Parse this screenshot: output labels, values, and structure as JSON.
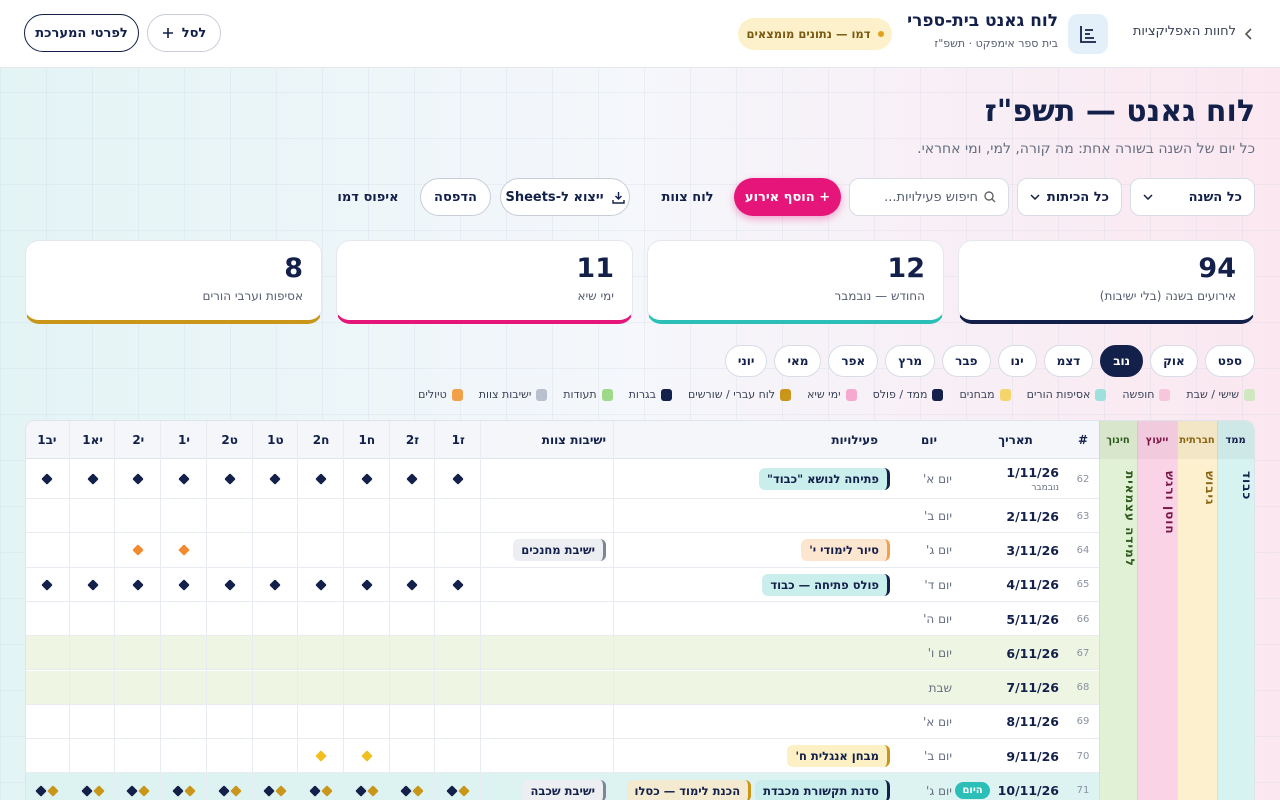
{
  "header": {
    "back": "לחוות האפליקציות",
    "title": "לוח גאנט בית-ספרי",
    "subtitle": "בית ספר אימפקט · תשפ\"ז",
    "badge": "דמו — נתונים מומצאים",
    "details": "לפרטי המערכת",
    "cart": "לסל"
  },
  "page": {
    "title": "לוח גאנט — תשפ\"ז",
    "subtitle": "כל יום של השנה בשורה אחת: מה קורה, למי, ומי אחראי."
  },
  "toolbar": {
    "range": "כל השנה",
    "classes": "כל הכיתות",
    "search": "חיפוש פעילויות...",
    "add": "+ הוסף אירוע",
    "staff": "לוח צוות",
    "export": "ייצוא ל-Sheets",
    "print": "הדפסה",
    "reset": "איפוס דמו"
  },
  "stats": [
    {
      "value": "94",
      "label": "אירועים בשנה (בלי ישיבות)",
      "color": "#13204a"
    },
    {
      "value": "12",
      "label": "החודש — נובמבר",
      "color": "#2bbfb8"
    },
    {
      "value": "11",
      "label": "ימי שיא",
      "color": "#e5157a"
    },
    {
      "value": "8",
      "label": "אסיפות וערבי הורים",
      "color": "#c9961a"
    }
  ],
  "months": {
    "items": [
      "ספט",
      "אוק",
      "נוב",
      "דצמ",
      "ינו",
      "פבר",
      "מרץ",
      "אפר",
      "מאי",
      "יוני"
    ],
    "active": "נוב"
  },
  "legend": [
    {
      "label": "שישי / שבת",
      "color": "#cfe8bf"
    },
    {
      "label": "חופשה",
      "color": "#f7c6dc"
    },
    {
      "label": "אסיפות הורים",
      "color": "#9fe0dc"
    },
    {
      "label": "מבחנים",
      "color": "#f5d56b"
    },
    {
      "label": "ממד / פולס",
      "color": "#13204a"
    },
    {
      "label": "ימי שיא",
      "color": "#f7a8cf"
    },
    {
      "label": "לוח עברי / שורשים",
      "color": "#c9961a"
    },
    {
      "label": "בגרות",
      "color": "#13204a"
    },
    {
      "label": "תעודות",
      "color": "#9ed98a"
    },
    {
      "label": "ישיבות צוות",
      "color": "#b9bfcc"
    },
    {
      "label": "טיולים",
      "color": "#f2a04a"
    }
  ],
  "table": {
    "tracks": [
      {
        "header": "ממד",
        "label": "כבוד",
        "bg": "#d6f2f1",
        "fg": "#13204a"
      },
      {
        "header": "חברתית",
        "label": "גיבוש",
        "bg": "#fdf0cf",
        "fg": "#8a6410"
      },
      {
        "header": "ייעוץ",
        "label": "חוסן ורגש",
        "bg": "#fbd3e6",
        "fg": "#7a1445"
      },
      {
        "header": "חינוך",
        "label": "למידה עצמאית",
        "bg": "#e1f1d5",
        "fg": "#2f5a1e"
      }
    ],
    "columns": {
      "num": "#",
      "date": "תאריך",
      "day": "יום",
      "events": "פעילויות",
      "staff": "ישיבות צוות"
    },
    "grades": [
      "ז1",
      "ז2",
      "ח1",
      "ח2",
      "ט1",
      "ט2",
      "י1",
      "י2",
      "יא1",
      "יב1"
    ],
    "today": "היום",
    "rows": [
      {
        "num": "62",
        "date": "1/11/26",
        "month": "נובמבר",
        "day": "יום א'",
        "events": [
          {
            "label": "פתיחה לנושא \"כבוד\"",
            "bg": "#c9eeec",
            "edge": "#13204a"
          }
        ],
        "staff": [],
        "dots": [
          [
            "#13204a"
          ],
          [
            "#13204a"
          ],
          [
            "#13204a"
          ],
          [
            "#13204a"
          ],
          [
            "#13204a"
          ],
          [
            "#13204a"
          ],
          [
            "#13204a"
          ],
          [
            "#13204a"
          ],
          [
            "#13204a"
          ],
          [
            "#13204a"
          ]
        ]
      },
      {
        "num": "63",
        "date": "2/11/26",
        "day": "יום ב'",
        "events": [],
        "staff": [],
        "dots": [
          [],
          [],
          [],
          [],
          [],
          [],
          [],
          [],
          [],
          []
        ]
      },
      {
        "num": "64",
        "date": "3/11/26",
        "day": "יום ג'",
        "events": [
          {
            "label": "סיור לימודי י'",
            "bg": "#fde6d0",
            "edge": "#f2a04a"
          }
        ],
        "staff": [
          {
            "label": "ישיבת מחנכים",
            "bg": "#eceef2",
            "edge": "#7d8597"
          }
        ],
        "dots": [
          [],
          [],
          [],
          [],
          [],
          [],
          [
            "#f28a30"
          ],
          [
            "#f28a30"
          ],
          [],
          []
        ]
      },
      {
        "num": "65",
        "date": "4/11/26",
        "day": "יום ד'",
        "events": [
          {
            "label": "פולס פתיחה — כבוד",
            "bg": "#c9eeec",
            "edge": "#13204a"
          }
        ],
        "staff": [],
        "dots": [
          [
            "#13204a"
          ],
          [
            "#13204a"
          ],
          [
            "#13204a"
          ],
          [
            "#13204a"
          ],
          [
            "#13204a"
          ],
          [
            "#13204a"
          ],
          [
            "#13204a"
          ],
          [
            "#13204a"
          ],
          [
            "#13204a"
          ],
          [
            "#13204a"
          ]
        ]
      },
      {
        "num": "66",
        "date": "5/11/26",
        "day": "יום ה'",
        "events": [],
        "staff": [],
        "dots": [
          [],
          [],
          [],
          [],
          [],
          [],
          [],
          [],
          [],
          []
        ]
      },
      {
        "num": "67",
        "date": "6/11/26",
        "day": "יום ו'",
        "weekend": true,
        "events": [],
        "staff": [],
        "dots": [
          [],
          [],
          [],
          [],
          [],
          [],
          [],
          [],
          [],
          []
        ]
      },
      {
        "num": "68",
        "date": "7/11/26",
        "day": "שבת",
        "weekend": true,
        "events": [],
        "staff": [],
        "dots": [
          [],
          [],
          [],
          [],
          [],
          [],
          [],
          [],
          [],
          []
        ]
      },
      {
        "num": "69",
        "date": "8/11/26",
        "day": "יום א'",
        "events": [],
        "staff": [],
        "dots": [
          [],
          [],
          [],
          [],
          [],
          [],
          [],
          [],
          [],
          []
        ]
      },
      {
        "num": "70",
        "date": "9/11/26",
        "day": "יום ב'",
        "events": [
          {
            "label": "מבחן אנגלית ח'",
            "bg": "#fdf0c4",
            "edge": "#c9961a"
          }
        ],
        "staff": [],
        "dots": [
          [],
          [],
          [
            "#f0c020"
          ],
          [
            "#f0c020"
          ],
          [],
          [],
          [],
          [],
          [],
          []
        ]
      },
      {
        "num": "71",
        "date": "10/11/26",
        "day": "יום ג'",
        "is_today": true,
        "events": [
          {
            "label": "סדנת תקשורת מכבדת",
            "bg": "#c9eeec",
            "edge": "#13204a"
          },
          {
            "label": "הכנת לימוד — כסלו",
            "bg": "#f3ead0",
            "edge": "#c9961a"
          }
        ],
        "staff": [
          {
            "label": "ישיבת שכבה",
            "bg": "#eceef2",
            "edge": "#7d8597"
          }
        ],
        "dots": [
          [
            "#c9961a",
            "#13204a"
          ],
          [
            "#c9961a",
            "#13204a"
          ],
          [
            "#c9961a",
            "#13204a"
          ],
          [
            "#c9961a",
            "#13204a"
          ],
          [
            "#c9961a",
            "#13204a"
          ],
          [
            "#c9961a",
            "#13204a"
          ],
          [
            "#c9961a",
            "#13204a"
          ],
          [
            "#c9961a",
            "#13204a"
          ],
          [
            "#c9961a",
            "#13204a"
          ],
          [
            "#c9961a",
            "#13204a"
          ]
        ]
      }
    ]
  }
}
